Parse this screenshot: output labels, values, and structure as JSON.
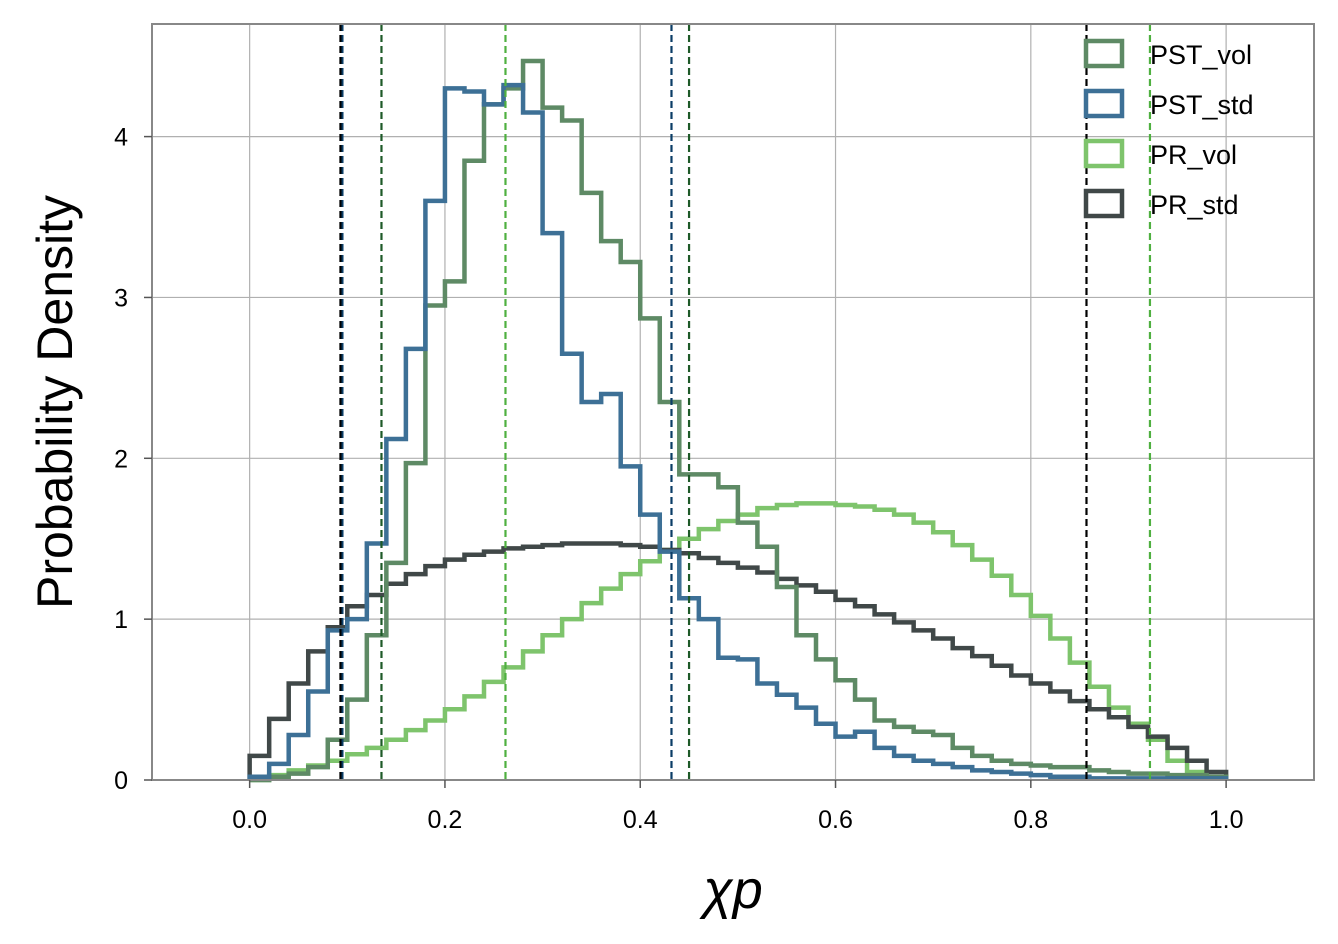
{
  "chart_data": {
    "type": "step-histogram",
    "xlabel": "χp",
    "ylabel": "Probability Density",
    "xlim": [
      -0.1,
      1.09
    ],
    "ylim": [
      0,
      4.7
    ],
    "xticks": [
      0.0,
      0.2,
      0.4,
      0.6,
      0.8,
      1.0
    ],
    "xtick_labels": [
      "0.0",
      "0.2",
      "0.4",
      "0.6",
      "0.8",
      "1.0"
    ],
    "yticks": [
      0,
      1,
      2,
      3,
      4
    ],
    "ytick_labels": [
      "0",
      "1",
      "2",
      "3",
      "4"
    ],
    "grid": true,
    "legend_position": "top-right",
    "bin_edges_start": 0.0,
    "bin_width": 0.02,
    "series": [
      {
        "name": "PST_vol",
        "color": "#5e8a65",
        "values": [
          0.0,
          0.02,
          0.04,
          0.08,
          0.25,
          0.5,
          0.9,
          1.35,
          1.97,
          2.95,
          3.1,
          3.85,
          4.2,
          4.3,
          4.47,
          4.18,
          4.1,
          3.65,
          3.35,
          3.22,
          2.87,
          2.35,
          1.9,
          1.9,
          1.82,
          1.6,
          1.45,
          1.2,
          0.9,
          0.75,
          0.62,
          0.5,
          0.37,
          0.33,
          0.3,
          0.28,
          0.2,
          0.15,
          0.12,
          0.1,
          0.09,
          0.08,
          0.08,
          0.06,
          0.05,
          0.04,
          0.04,
          0.03,
          0.03,
          0.02
        ],
        "ci": [
          0.135,
          0.45
        ]
      },
      {
        "name": "PST_std",
        "color": "#3d7096",
        "values": [
          0.02,
          0.1,
          0.28,
          0.55,
          0.93,
          1.0,
          1.47,
          2.12,
          2.68,
          3.6,
          4.3,
          4.28,
          4.2,
          4.32,
          4.15,
          3.4,
          2.65,
          2.35,
          2.4,
          1.95,
          1.65,
          1.42,
          1.13,
          1.0,
          0.76,
          0.75,
          0.6,
          0.53,
          0.45,
          0.35,
          0.27,
          0.3,
          0.2,
          0.15,
          0.12,
          0.1,
          0.08,
          0.06,
          0.05,
          0.04,
          0.03,
          0.02,
          0.02,
          0.01,
          0.01,
          0.01,
          0.01,
          0.01,
          0.01,
          0.01
        ],
        "ci": [
          0.095,
          0.432
        ]
      },
      {
        "name": "PR_vol",
        "color": "#7ec46c",
        "values": [
          0.0,
          0.03,
          0.06,
          0.09,
          0.12,
          0.16,
          0.2,
          0.25,
          0.31,
          0.37,
          0.44,
          0.52,
          0.61,
          0.7,
          0.8,
          0.9,
          1.0,
          1.1,
          1.19,
          1.28,
          1.36,
          1.43,
          1.5,
          1.56,
          1.61,
          1.65,
          1.69,
          1.71,
          1.72,
          1.72,
          1.71,
          1.7,
          1.68,
          1.65,
          1.6,
          1.54,
          1.46,
          1.37,
          1.27,
          1.15,
          1.02,
          0.88,
          0.73,
          0.58,
          0.45,
          0.35,
          0.25,
          0.12,
          0.05,
          0.02
        ],
        "ci": [
          0.262,
          0.922
        ]
      },
      {
        "name": "PR_std",
        "color": "#404848",
        "values": [
          0.15,
          0.38,
          0.6,
          0.8,
          0.95,
          1.08,
          1.15,
          1.22,
          1.28,
          1.33,
          1.37,
          1.4,
          1.42,
          1.44,
          1.45,
          1.46,
          1.47,
          1.47,
          1.47,
          1.46,
          1.45,
          1.43,
          1.41,
          1.38,
          1.35,
          1.32,
          1.29,
          1.25,
          1.21,
          1.17,
          1.12,
          1.08,
          1.03,
          0.98,
          0.93,
          0.88,
          0.82,
          0.77,
          0.71,
          0.65,
          0.6,
          0.55,
          0.49,
          0.44,
          0.39,
          0.33,
          0.27,
          0.2,
          0.12,
          0.05
        ],
        "ci": [
          0.093,
          0.857
        ]
      }
    ],
    "ci_line_colors": {
      "PST_vol": "#1e5a28",
      "PST_std": "#0b3d66",
      "PR_vol": "#4fb040",
      "PR_std": "#000000"
    }
  }
}
